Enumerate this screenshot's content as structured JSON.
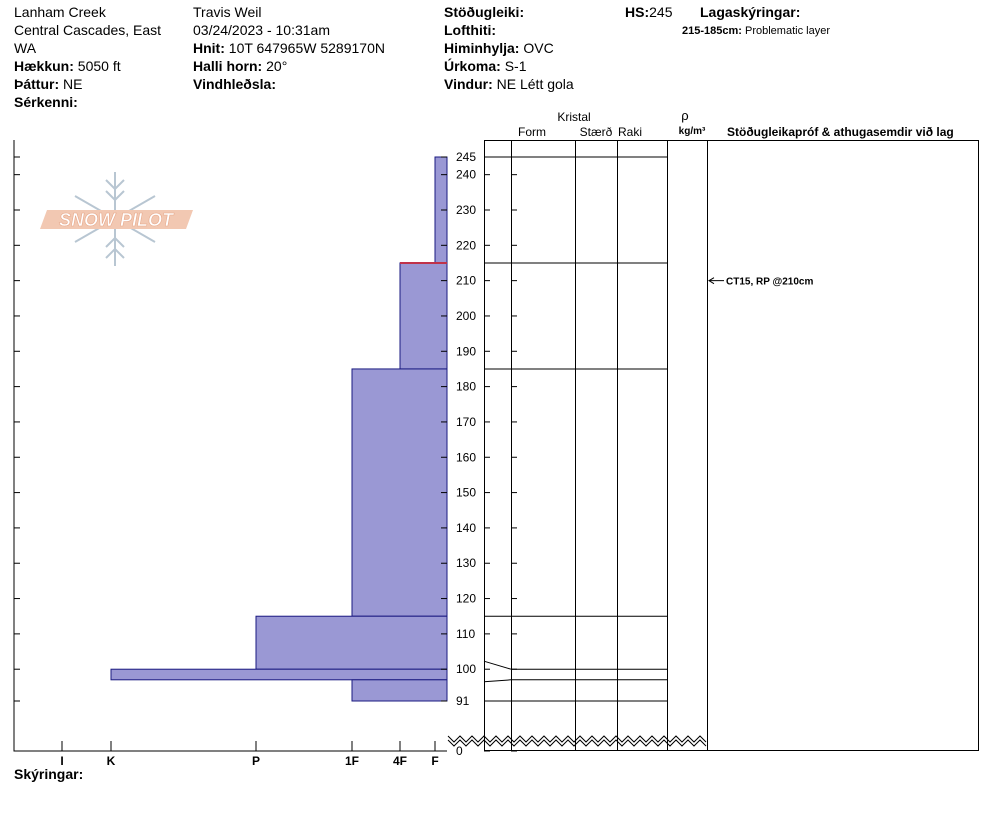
{
  "header": {
    "location": "Lanham Creek",
    "range_line1": "Central Cascades, East",
    "range_line2": "WA",
    "elevation_label": "Hækkun:",
    "elevation_value": "5050 ft",
    "aspect_label": "Þáttur:",
    "aspect_value": "NE",
    "features_label": "Sérkenni:",
    "observer": "Travis  Weil",
    "datetime": "03/24/2023 - 10:31am",
    "coords_label": "Hnit:",
    "coords_value": "10T 647965W 5289170N",
    "slope_label": "Halli horn:",
    "slope_value": "20°",
    "wind_loading_label": "Vindhleðsla:",
    "stability_label": "Stöðugleiki:",
    "air_temp_label": "Lofthiti:",
    "sky_label": "Himinhylja:",
    "sky_value": "OVC",
    "precip_label": "Úrkoma:",
    "precip_value": "S-1",
    "wind_label": "Vindur:",
    "wind_value": "NE Létt gola",
    "hs_label": "HS:",
    "hs_value": "245",
    "layer_notes_label": "Lagaskýringar:",
    "layer_note_range": "215-185cm:",
    "layer_note_text": "Problematic layer"
  },
  "logo_text": "SNOW PILOT",
  "columns": {
    "crystal": "Kristal",
    "form": "Form",
    "size": "Stærð",
    "moisture": "Raki",
    "rho": "ρ",
    "density_unit": "kg/m³",
    "stability_tests": "Stöðugleikapróf & athugasemdir við lag"
  },
  "footer": {
    "comments_label": "Skýringar:"
  },
  "colors": {
    "fill": "#9a98d4",
    "stroke": "#1a1a80",
    "weak_layer": "#c0324a"
  },
  "chart_data": {
    "type": "hardness_profile",
    "hardness_scale": [
      "I",
      "K",
      "P",
      "1F",
      "4F",
      "F"
    ],
    "height_ticks": [
      245,
      240,
      230,
      220,
      210,
      200,
      190,
      180,
      170,
      160,
      150,
      140,
      130,
      120,
      110,
      100,
      91,
      0
    ],
    "height_range_cm": [
      91,
      245
    ],
    "axis_break_below_cm": 91,
    "layers": [
      {
        "top": 245,
        "bottom": 215,
        "hardness": "F"
      },
      {
        "top": 215,
        "bottom": 185,
        "hardness": "4F",
        "weak_layer_top": true
      },
      {
        "top": 185,
        "bottom": 115,
        "hardness": "1F"
      },
      {
        "top": 115,
        "bottom": 100,
        "hardness": "P"
      },
      {
        "top": 100,
        "bottom": 97,
        "hardness": "K"
      },
      {
        "top": 97,
        "bottom": 91,
        "hardness": "1F"
      }
    ],
    "stability_tests": [
      {
        "depth": 210,
        "text": "CT15, RP @210cm"
      }
    ]
  }
}
